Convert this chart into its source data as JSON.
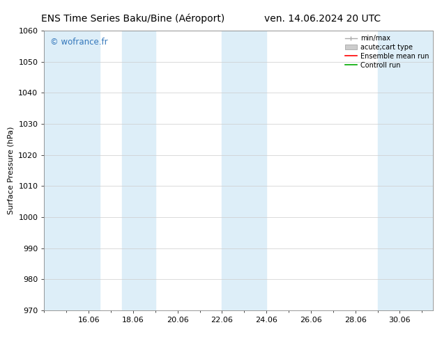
{
  "title_left": "ENS Time Series Baku/Bine (Aéroport)",
  "title_right": "ven. 14.06.2024 20 UTC",
  "ylabel": "Surface Pressure (hPa)",
  "ylim": [
    970,
    1060
  ],
  "yticks": [
    970,
    980,
    990,
    1000,
    1010,
    1020,
    1030,
    1040,
    1050,
    1060
  ],
  "xtick_labels": [
    "16.06",
    "18.06",
    "20.06",
    "22.06",
    "24.06",
    "26.06",
    "28.06",
    "30.06"
  ],
  "xtick_positions": [
    2,
    4,
    6,
    8,
    10,
    12,
    14,
    16
  ],
  "xlim": [
    0,
    17.5
  ],
  "watermark": "© wofrance.fr",
  "legend_labels": [
    "min/max",
    "acute;cart type",
    "Ensemble mean run",
    "Controll run"
  ],
  "legend_line_colors": [
    "#aaaaaa",
    "#cccccc",
    "#ff0000",
    "#00aa00"
  ],
  "shaded_bands": [
    {
      "x_start": 0.0,
      "x_end": 2.5,
      "color": "#ddeef8"
    },
    {
      "x_start": 3.5,
      "x_end": 5.0,
      "color": "#ddeef8"
    },
    {
      "x_start": 8.0,
      "x_end": 10.0,
      "color": "#ddeef8"
    },
    {
      "x_start": 15.0,
      "x_end": 17.5,
      "color": "#ddeef8"
    }
  ],
  "bg_color": "#ffffff",
  "plot_bg_color": "#ffffff",
  "grid_color": "#cccccc",
  "title_fontsize": 10,
  "axis_label_fontsize": 8,
  "tick_fontsize": 8,
  "legend_fontsize": 7,
  "watermark_color": "#3377bb"
}
